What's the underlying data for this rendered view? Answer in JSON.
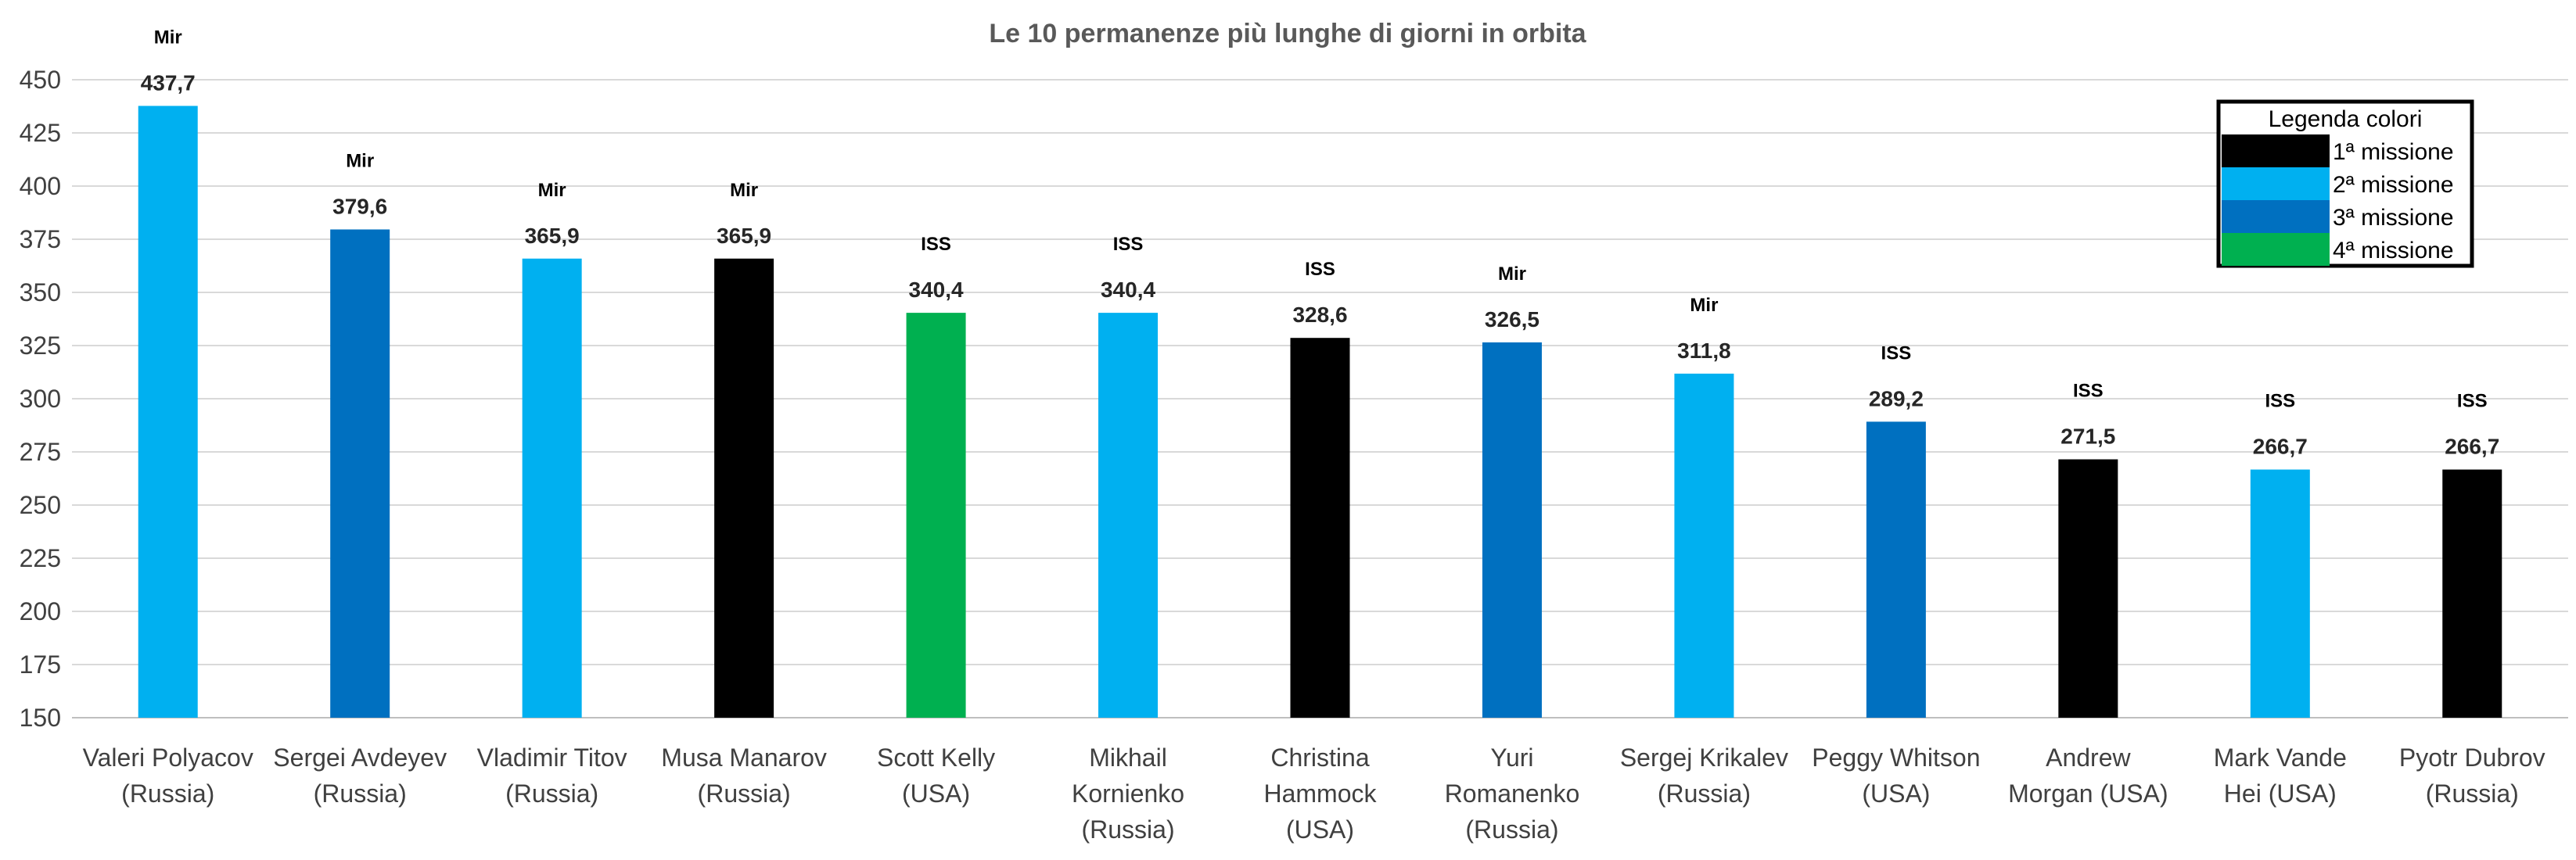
{
  "chart_data": {
    "type": "bar",
    "title": "Le 10 permanenze più lunghe di giorni in orbita",
    "xlabel": "",
    "ylabel": "",
    "ylim": [
      150,
      450
    ],
    "yticks": [
      150,
      175,
      200,
      225,
      250,
      275,
      300,
      325,
      350,
      375,
      400,
      425,
      450
    ],
    "grid": true,
    "categories": [
      [
        "Valeri Polyacov",
        "(Russia)"
      ],
      [
        "Sergei Avdeyev",
        "(Russia)"
      ],
      [
        "Vladimir Titov",
        "(Russia)"
      ],
      [
        "Musa Manarov",
        "(Russia)"
      ],
      [
        "Scott Kelly",
        "(USA)"
      ],
      [
        "Mikhail",
        "Kornienko",
        "(Russia)"
      ],
      [
        "Christina",
        "Hammock",
        "(USA)"
      ],
      [
        "Yuri",
        "Romanenko",
        "(Russia)"
      ],
      [
        "Sergej Krikalev",
        "(Russia)"
      ],
      [
        "Peggy Whitson",
        "(USA)"
      ],
      [
        "Andrew",
        "Morgan (USA)"
      ],
      [
        "Mark Vande",
        "Hei (USA)"
      ],
      [
        "Pyotr Dubrov",
        "(Russia)"
      ]
    ],
    "values": [
      437.7,
      379.6,
      365.9,
      365.9,
      340.4,
      340.4,
      328.6,
      326.5,
      311.8,
      289.2,
      271.5,
      266.7,
      266.7
    ],
    "value_labels": [
      "437,7",
      "379,6",
      "365,9",
      "365,9",
      "340,4",
      "340,4",
      "328,6",
      "326,5",
      "311,8",
      "289,2",
      "271,5",
      "266,7",
      "266,7"
    ],
    "stations": [
      "Mir",
      "Mir",
      "Mir",
      "Mir",
      "ISS",
      "ISS",
      "ISS",
      "Mir",
      "Mir",
      "ISS",
      "ISS",
      "ISS",
      "ISS"
    ],
    "mission": [
      2,
      3,
      2,
      1,
      4,
      2,
      1,
      3,
      2,
      3,
      1,
      2,
      1
    ],
    "legend": {
      "title": "Legenda colori",
      "placement": "top-right",
      "entries": [
        {
          "label": "1ª missione",
          "color": "#000000"
        },
        {
          "label": "2ª missione",
          "color": "#00B0F0"
        },
        {
          "label": "3ª missione",
          "color": "#0070C0"
        },
        {
          "label": "4ª missione",
          "color": "#00B050"
        }
      ]
    }
  }
}
